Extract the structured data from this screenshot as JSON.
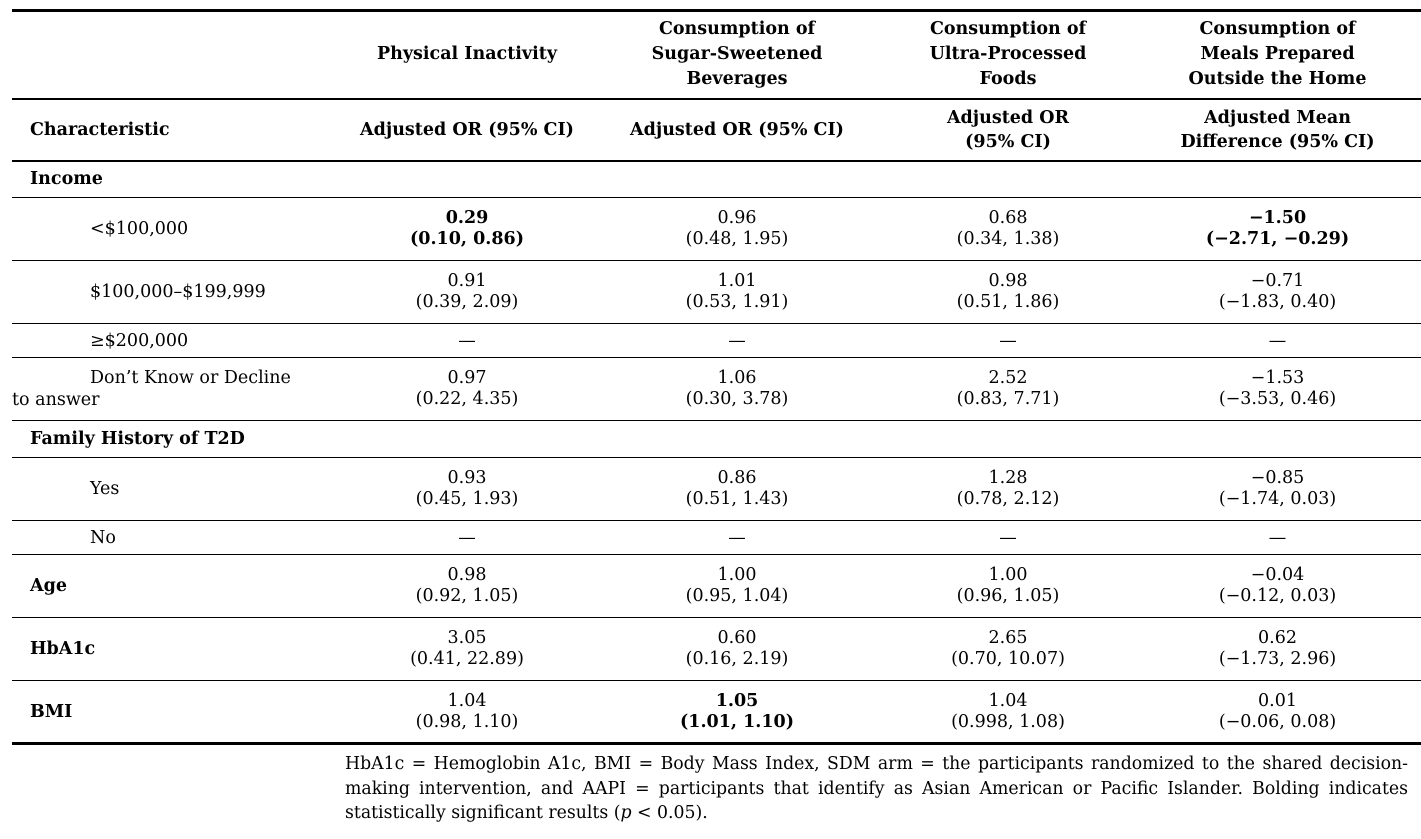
{
  "table": {
    "group_headers": {
      "col2": "Physical Inactivity",
      "col3": "Consumption of Sugar-Sweetened Beverages",
      "col4": "Consumption of Ultra-Processed Foods",
      "col5": "Consumption of Meals Prepared Outside the Home"
    },
    "column_headers": {
      "characteristic": "Characteristic",
      "col2": "Adjusted OR (95% CI)",
      "col3": "Adjusted OR (95% CI)",
      "col4": "Adjusted OR (95% CI)",
      "col5": "Adjusted Mean Difference (95% CI)"
    },
    "rows": [
      {
        "type": "section",
        "label": "Income"
      },
      {
        "type": "data",
        "label": "<$100,000",
        "cells": [
          {
            "v": "0.29",
            "ci": "(0.10, 0.86)",
            "bold": true
          },
          {
            "v": "0.96",
            "ci": "(0.48, 1.95)",
            "bold": false
          },
          {
            "v": "0.68",
            "ci": "(0.34, 1.38)",
            "bold": false
          },
          {
            "v": "−1.50",
            "ci": "(−2.71, −0.29)",
            "bold": true
          }
        ]
      },
      {
        "type": "data",
        "label": "$100,000–$199,999",
        "cells": [
          {
            "v": "0.91",
            "ci": "(0.39, 2.09)",
            "bold": false
          },
          {
            "v": "1.01",
            "ci": "(0.53, 1.91)",
            "bold": false
          },
          {
            "v": "0.98",
            "ci": "(0.51, 1.86)",
            "bold": false
          },
          {
            "v": "−0.71",
            "ci": "(−1.83, 0.40)",
            "bold": false
          }
        ]
      },
      {
        "type": "dash",
        "label": "≥$200,000",
        "cells": [
          "—",
          "—",
          "—",
          "—"
        ]
      },
      {
        "type": "data",
        "label": "Don’t Know or Decline",
        "label2": "to answer",
        "cells": [
          {
            "v": "0.97",
            "ci": "(0.22, 4.35)",
            "bold": false
          },
          {
            "v": "1.06",
            "ci": "(0.30, 3.78)",
            "bold": false
          },
          {
            "v": "2.52",
            "ci": "(0.83, 7.71)",
            "bold": false
          },
          {
            "v": "−1.53",
            "ci": "(−3.53, 0.46)",
            "bold": false
          }
        ]
      },
      {
        "type": "section",
        "label": "Family History of T2D"
      },
      {
        "type": "data",
        "label": "Yes",
        "cells": [
          {
            "v": "0.93",
            "ci": "(0.45, 1.93)",
            "bold": false
          },
          {
            "v": "0.86",
            "ci": "(0.51, 1.43)",
            "bold": false
          },
          {
            "v": "1.28",
            "ci": "(0.78, 2.12)",
            "bold": false
          },
          {
            "v": "−0.85",
            "ci": "(−1.74, 0.03)",
            "bold": false
          }
        ]
      },
      {
        "type": "dash",
        "label": "No",
        "cells": [
          "—",
          "—",
          "—",
          "—"
        ]
      },
      {
        "type": "data",
        "label": "Age",
        "label_style": "bold",
        "cells": [
          {
            "v": "0.98",
            "ci": "(0.92, 1.05)",
            "bold": false
          },
          {
            "v": "1.00",
            "ci": "(0.95, 1.04)",
            "bold": false
          },
          {
            "v": "1.00",
            "ci": "(0.96, 1.05)",
            "bold": false
          },
          {
            "v": "−0.04",
            "ci": "(−0.12, 0.03)",
            "bold": false
          }
        ]
      },
      {
        "type": "data",
        "label": "HbA1c",
        "label_style": "bold",
        "cells": [
          {
            "v": "3.05",
            "ci": "(0.41, 22.89)",
            "bold": false
          },
          {
            "v": "0.60",
            "ci": "(0.16, 2.19)",
            "bold": false
          },
          {
            "v": "2.65",
            "ci": "(0.70, 10.07)",
            "bold": false
          },
          {
            "v": "0.62",
            "ci": "(−1.73, 2.96)",
            "bold": false
          }
        ]
      },
      {
        "type": "data",
        "label": "BMI",
        "label_style": "bold",
        "cells": [
          {
            "v": "1.04",
            "ci": "(0.98, 1.10)",
            "bold": false
          },
          {
            "v": "1.05",
            "ci": "(1.01, 1.10)",
            "bold": true
          },
          {
            "v": "1.04",
            "ci": "(0.998, 1.08)",
            "bold": false
          },
          {
            "v": "0.01",
            "ci": "(−0.06, 0.08)",
            "bold": false
          }
        ]
      }
    ]
  },
  "footnote": {
    "text_main": "HbA1c = Hemoglobin A1c, BMI = Body Mass Index, SDM arm = the participants randomized to the shared decision-making intervention, and AAPI = participants that identify as Asian American or Pacific Islander. Bolding indicates statistically significant results (",
    "p_symbol": "p",
    "text_end": " < 0.05)."
  }
}
